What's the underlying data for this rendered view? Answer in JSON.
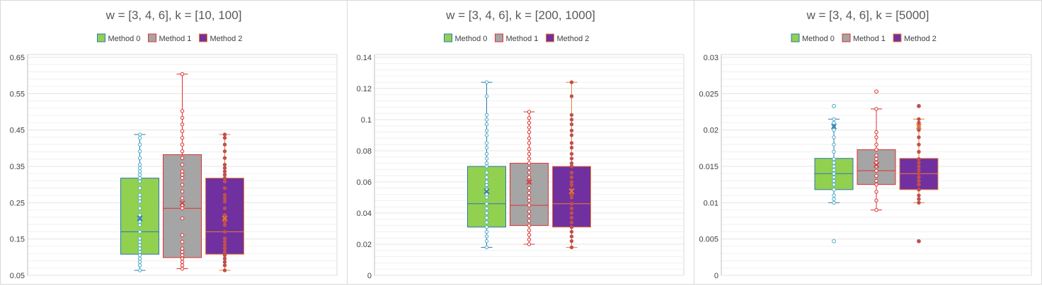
{
  "colors": {
    "method0_fill": "#92D050",
    "method0_border": "#2E75B6",
    "method0_point": "#4BACC6",
    "method1_fill": "#A5A5A5",
    "method1_border": "#E03030",
    "method1_point": "#E03030",
    "method2_fill": "#7030A0",
    "method2_border": "#ED7D31",
    "method2_point": "#C0504D",
    "gridline": "#e6e6e6",
    "axis": "#bfbfbf"
  },
  "chart_data": [
    {
      "type": "box",
      "title": "w = [3, 4, 6], k = [10, 100]",
      "legend_position": "top",
      "grid": true,
      "ylim": [
        0.05,
        0.7
      ],
      "yticks": [
        "0.05",
        "0.15",
        "0.25",
        "0.35",
        "0.45",
        "0.55",
        "0.65"
      ],
      "series": [
        {
          "name": "Method 0",
          "min": 0.065,
          "q1": 0.113,
          "median": 0.18,
          "q3": 0.34,
          "max": 0.47,
          "mean": 0.22,
          "points": [
            0.065,
            0.08,
            0.09,
            0.1,
            0.11,
            0.12,
            0.13,
            0.14,
            0.15,
            0.16,
            0.18,
            0.2,
            0.21,
            0.22,
            0.23,
            0.25,
            0.27,
            0.28,
            0.29,
            0.31,
            0.33,
            0.34,
            0.35,
            0.36,
            0.37,
            0.38,
            0.4,
            0.42,
            0.44,
            0.46,
            0.47
          ]
        },
        {
          "name": "Method 1",
          "min": 0.07,
          "q1": 0.103,
          "median": 0.25,
          "q3": 0.41,
          "max": 0.65,
          "mean": 0.265,
          "points": [
            0.07,
            0.08,
            0.09,
            0.1,
            0.11,
            0.12,
            0.13,
            0.15,
            0.17,
            0.22,
            0.25,
            0.26,
            0.28,
            0.3,
            0.32,
            0.34,
            0.35,
            0.36,
            0.38,
            0.4,
            0.42,
            0.44,
            0.46,
            0.48,
            0.5,
            0.52,
            0.54,
            0.65
          ]
        },
        {
          "name": "Method 2",
          "min": 0.065,
          "q1": 0.113,
          "median": 0.18,
          "q3": 0.34,
          "max": 0.47,
          "mean": 0.22,
          "points": [
            0.065,
            0.08,
            0.09,
            0.1,
            0.11,
            0.12,
            0.13,
            0.14,
            0.15,
            0.16,
            0.18,
            0.2,
            0.21,
            0.22,
            0.23,
            0.25,
            0.27,
            0.28,
            0.29,
            0.31,
            0.33,
            0.34,
            0.35,
            0.36,
            0.37,
            0.38,
            0.4,
            0.42,
            0.44,
            0.46,
            0.47
          ]
        }
      ]
    },
    {
      "type": "box",
      "title": "w = [3, 4, 6], k = [200, 1000]",
      "legend_position": "top",
      "grid": true,
      "ylim": [
        0,
        0.14
      ],
      "yticks": [
        "0",
        "0.02",
        "0.04",
        "0.06",
        "0.08",
        "0.1",
        "0.12",
        "0.14"
      ],
      "series": [
        {
          "name": "Method 0",
          "min": 0.018,
          "q1": 0.031,
          "median": 0.046,
          "q3": 0.07,
          "max": 0.124,
          "mean": 0.054,
          "points": [
            0.018,
            0.022,
            0.025,
            0.028,
            0.031,
            0.034,
            0.037,
            0.04,
            0.043,
            0.046,
            0.05,
            0.052,
            0.055,
            0.058,
            0.06,
            0.063,
            0.066,
            0.07,
            0.072,
            0.075,
            0.078,
            0.082,
            0.085,
            0.09,
            0.093,
            0.097,
            0.1,
            0.103,
            0.115,
            0.124
          ]
        },
        {
          "name": "Method 1",
          "min": 0.02,
          "q1": 0.032,
          "median": 0.045,
          "q3": 0.072,
          "max": 0.105,
          "mean": 0.06,
          "points": [
            0.02,
            0.023,
            0.026,
            0.029,
            0.032,
            0.035,
            0.038,
            0.041,
            0.045,
            0.048,
            0.05,
            0.053,
            0.056,
            0.06,
            0.063,
            0.066,
            0.069,
            0.072,
            0.075,
            0.078,
            0.081,
            0.085,
            0.088,
            0.092,
            0.095,
            0.098,
            0.101,
            0.105
          ]
        },
        {
          "name": "Method 2",
          "min": 0.018,
          "q1": 0.031,
          "median": 0.046,
          "q3": 0.07,
          "max": 0.124,
          "mean": 0.054,
          "points": [
            0.018,
            0.022,
            0.025,
            0.028,
            0.031,
            0.034,
            0.037,
            0.04,
            0.043,
            0.046,
            0.05,
            0.052,
            0.055,
            0.058,
            0.06,
            0.063,
            0.066,
            0.07,
            0.072,
            0.075,
            0.078,
            0.082,
            0.085,
            0.09,
            0.093,
            0.097,
            0.1,
            0.103,
            0.115,
            0.124
          ]
        }
      ]
    },
    {
      "type": "box",
      "title": "w = [3, 4, 6], k = [5000]",
      "legend_position": "top",
      "grid": true,
      "ylim": [
        0,
        0.03
      ],
      "yticks": [
        "0",
        "0.005",
        "0.01",
        "0.015",
        "0.02",
        "0.025",
        "0.03"
      ],
      "series": [
        {
          "name": "Method 0",
          "min": 0.01,
          "q1": 0.0118,
          "median": 0.014,
          "q3": 0.0161,
          "max": 0.0215,
          "mean": 0.0205,
          "outliers": [
            0.0047,
            0.0233
          ],
          "points": [
            0.01,
            0.0105,
            0.011,
            0.0118,
            0.0125,
            0.013,
            0.0135,
            0.014,
            0.0145,
            0.015,
            0.0155,
            0.016,
            0.017,
            0.018,
            0.019,
            0.02,
            0.0205,
            0.021,
            0.0215
          ]
        },
        {
          "name": "Method 1",
          "min": 0.009,
          "q1": 0.0125,
          "median": 0.0144,
          "q3": 0.0173,
          "max": 0.0229,
          "mean": 0.0152,
          "outliers": [
            0.0253
          ],
          "points": [
            0.009,
            0.0103,
            0.0115,
            0.0125,
            0.013,
            0.0137,
            0.0144,
            0.015,
            0.0155,
            0.016,
            0.0165,
            0.0173,
            0.018,
            0.019,
            0.0197,
            0.0229
          ]
        },
        {
          "name": "Method 2",
          "min": 0.01,
          "q1": 0.0118,
          "median": 0.014,
          "q3": 0.0161,
          "max": 0.0215,
          "mean": 0.0205,
          "outliers": [
            0.0047,
            0.0233
          ],
          "points": [
            0.01,
            0.0105,
            0.011,
            0.0118,
            0.0125,
            0.013,
            0.0135,
            0.014,
            0.0145,
            0.015,
            0.0155,
            0.016,
            0.017,
            0.018,
            0.019,
            0.02,
            0.0205,
            0.021,
            0.0215
          ]
        }
      ]
    }
  ]
}
